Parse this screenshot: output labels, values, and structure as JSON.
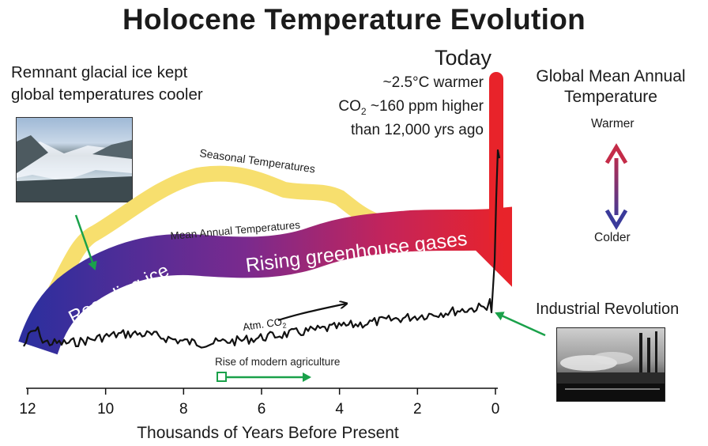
{
  "title": "Holocene Temperature Evolution",
  "remnant_text": [
    "Remnant glacial ice kept",
    "global temperatures cooler"
  ],
  "today": {
    "heading": "Today",
    "line1": "~2.5°C warmer",
    "line2_prefix": "CO",
    "line2_sub": "2",
    "line2_suffix": " ~160 ppm higher",
    "line3": "than 12,000 yrs ago"
  },
  "global_mean": {
    "title_line1": "Global Mean Annual",
    "title_line2": "Temperature",
    "warmer": "Warmer",
    "colder": "Colder"
  },
  "industrial": "Industrial Revolution",
  "bands": {
    "seasonal": "Seasonal Temperatures",
    "mean_annual": "Mean Annual Temperatures",
    "receding_ice": "Receding ice",
    "rising_gases": "Rising greenhouse gases"
  },
  "co2_label_prefix": "Atm. CO",
  "co2_label_sub": "2",
  "agriculture": "Rise of modern agriculture",
  "x_axis": {
    "label": "Thousands of Years Before Present",
    "ticks": [
      "12",
      "10",
      "8",
      "6",
      "4",
      "2",
      "0"
    ]
  },
  "colors": {
    "seasonal": "#f7df6e",
    "band_start": "#2e2f9e",
    "band_mid": "#7a2a8e",
    "band_end": "#e8232a",
    "co2": "#111111",
    "arrow_green": "#1aa14a",
    "arrow_warm": "#c42b48",
    "arrow_cold": "#3a3a9a"
  },
  "icons": [
    "glacier-photo",
    "factory-photo"
  ]
}
